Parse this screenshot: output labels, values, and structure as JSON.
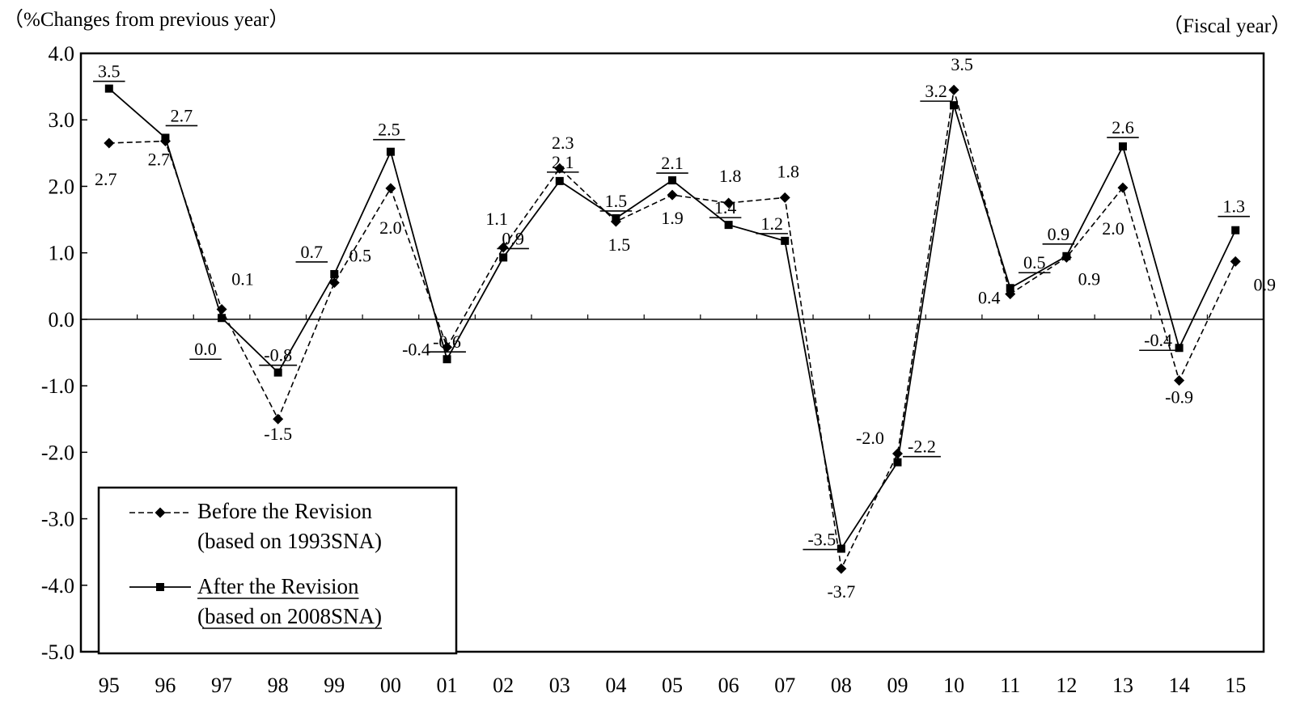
{
  "chart_data": {
    "type": "line",
    "ylabel": "（%Changes from previous year）",
    "xlabel": "（Fiscal year）",
    "categories": [
      "95",
      "96",
      "97",
      "98",
      "99",
      "00",
      "01",
      "02",
      "03",
      "04",
      "05",
      "06",
      "07",
      "08",
      "09",
      "10",
      "11",
      "12",
      "13",
      "14",
      "15"
    ],
    "ylim": [
      -5.0,
      4.0
    ],
    "yticks": [
      "4.0",
      "3.0",
      "2.0",
      "1.0",
      "0.0",
      "-1.0",
      "-2.0",
      "-3.0",
      "-4.0",
      "-5.0"
    ],
    "series": [
      {
        "name": "Before the Revision",
        "name_line2": "(based on 1993SNA)",
        "style": "dashed",
        "marker": "diamond",
        "values": [
          2.65,
          2.68,
          0.15,
          -1.5,
          0.55,
          1.97,
          -0.42,
          1.08,
          2.27,
          1.47,
          1.87,
          1.75,
          1.83,
          -3.75,
          -2.02,
          3.45,
          0.38,
          0.93,
          1.98,
          -0.92,
          0.87
        ],
        "labels": [
          "2.7",
          "2.7",
          "0.1",
          "-1.5",
          "0.5",
          "2.0",
          "-0.4",
          "1.1",
          "2.3",
          "1.5",
          "1.9",
          "1.8",
          "1.8",
          "-3.7",
          "-2.0",
          "3.5",
          "0.4",
          "0.9",
          "2.0",
          "-0.9",
          "0.9"
        ]
      },
      {
        "name": "After the Revision",
        "name_line2": " (based on 2008SNA)",
        "style": "solid",
        "marker": "square",
        "values": [
          3.47,
          2.73,
          0.02,
          -0.8,
          0.68,
          2.52,
          -0.6,
          0.93,
          2.08,
          1.52,
          2.09,
          1.42,
          1.18,
          -3.45,
          -2.15,
          3.22,
          0.47,
          0.95,
          2.6,
          -0.43,
          1.34
        ],
        "labels": [
          "3.5",
          "2.7",
          "0.0",
          "-0.8",
          "0.7",
          "2.5",
          "-0.6",
          "0.9",
          "2.1",
          "1.5",
          "2.1",
          "1.4",
          "1.2",
          "-3.5",
          "-2.2",
          "3.2",
          "0.5",
          "0.9",
          "2.6",
          "-0.4",
          "1.3"
        ]
      }
    ],
    "legend_position": "bottom-left",
    "grid": false
  }
}
